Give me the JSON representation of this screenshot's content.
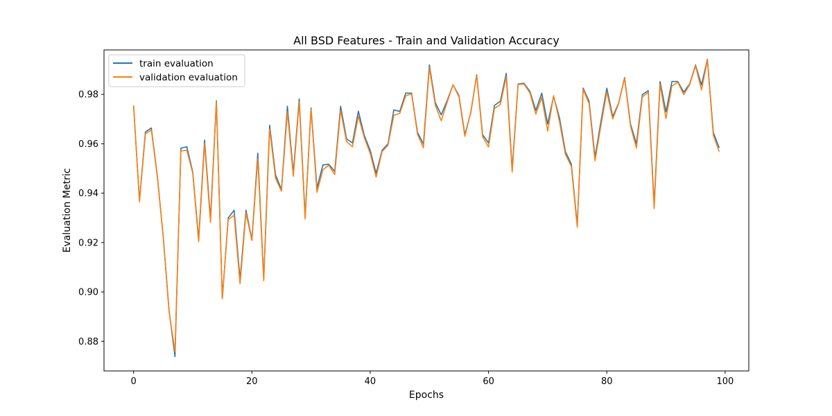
{
  "colors": {
    "train": "#1f77b4",
    "validation": "#ff7f0e",
    "axis": "#000000",
    "legend_border": "#cccccc"
  },
  "chart_data": {
    "type": "line",
    "title": "All BSD Features - Train and Validation Accuracy",
    "xlabel": "Epochs",
    "ylabel": "Evaluation Metric",
    "xlim": [
      -5,
      104
    ],
    "ylim": [
      0.868,
      0.998
    ],
    "xticks": [
      0,
      20,
      40,
      60,
      80,
      100
    ],
    "yticks": [
      0.88,
      0.9,
      0.92,
      0.94,
      0.96,
      0.98
    ],
    "xtick_labels": [
      "0",
      "20",
      "40",
      "60",
      "80",
      "100"
    ],
    "ytick_labels": [
      "0.88",
      "0.90",
      "0.92",
      "0.94",
      "0.96",
      "0.98"
    ],
    "grid": false,
    "legend_position": "top-left",
    "series": [
      {
        "name": "train evaluation",
        "color_key": "train",
        "values": [
          0.9755,
          0.9371,
          0.9648,
          0.9664,
          0.9474,
          0.9228,
          0.8924,
          0.8738,
          0.9582,
          0.9588,
          0.9486,
          0.9214,
          0.9615,
          0.9296,
          0.9774,
          0.8973,
          0.93,
          0.9331,
          0.9051,
          0.9331,
          0.9212,
          0.9562,
          0.9053,
          0.9675,
          0.9474,
          0.9414,
          0.9752,
          0.9481,
          0.9782,
          0.9306,
          0.9745,
          0.942,
          0.9514,
          0.9517,
          0.9488,
          0.9752,
          0.962,
          0.9603,
          0.9732,
          0.9634,
          0.9573,
          0.948,
          0.9573,
          0.9599,
          0.9737,
          0.9731,
          0.9805,
          0.9805,
          0.9646,
          0.9599,
          0.9919,
          0.9767,
          0.9717,
          0.9774,
          0.9839,
          0.9795,
          0.9637,
          0.9725,
          0.9879,
          0.9637,
          0.9603,
          0.9755,
          0.9772,
          0.9885,
          0.9497,
          0.9842,
          0.9845,
          0.9812,
          0.9735,
          0.9805,
          0.968,
          0.9792,
          0.9705,
          0.9568,
          0.9518,
          0.927,
          0.9825,
          0.9772,
          0.9546,
          0.969,
          0.9825,
          0.971,
          0.9765,
          0.9868,
          0.968,
          0.96,
          0.9799,
          0.9815,
          0.9354,
          0.9852,
          0.9729,
          0.9852,
          0.9852,
          0.9809,
          0.9842,
          0.9919,
          0.9838,
          0.9942,
          0.9646,
          0.9583
        ]
      },
      {
        "name": "validation evaluation",
        "color_key": "validation",
        "values": [
          0.9755,
          0.9365,
          0.964,
          0.9656,
          0.947,
          0.9225,
          0.892,
          0.8758,
          0.957,
          0.9574,
          0.9481,
          0.9203,
          0.9601,
          0.9281,
          0.977,
          0.8972,
          0.9294,
          0.931,
          0.9033,
          0.932,
          0.9208,
          0.954,
          0.9045,
          0.966,
          0.946,
          0.9408,
          0.973,
          0.9468,
          0.9769,
          0.9295,
          0.974,
          0.9403,
          0.9495,
          0.9513,
          0.9475,
          0.9735,
          0.9609,
          0.9588,
          0.9712,
          0.9625,
          0.9561,
          0.9465,
          0.9568,
          0.9594,
          0.9715,
          0.9723,
          0.9794,
          0.9802,
          0.9638,
          0.9584,
          0.9908,
          0.9757,
          0.9693,
          0.9768,
          0.9839,
          0.979,
          0.963,
          0.9728,
          0.9876,
          0.9628,
          0.9587,
          0.9743,
          0.9759,
          0.9872,
          0.9485,
          0.984,
          0.9842,
          0.9806,
          0.972,
          0.9788,
          0.9651,
          0.9795,
          0.969,
          0.9557,
          0.9508,
          0.9262,
          0.982,
          0.9763,
          0.9531,
          0.9674,
          0.981,
          0.97,
          0.9763,
          0.9865,
          0.9672,
          0.9583,
          0.979,
          0.9808,
          0.9338,
          0.984,
          0.9702,
          0.9834,
          0.9849,
          0.9799,
          0.9839,
          0.9916,
          0.9818,
          0.9939,
          0.9635,
          0.9568
        ]
      }
    ]
  }
}
